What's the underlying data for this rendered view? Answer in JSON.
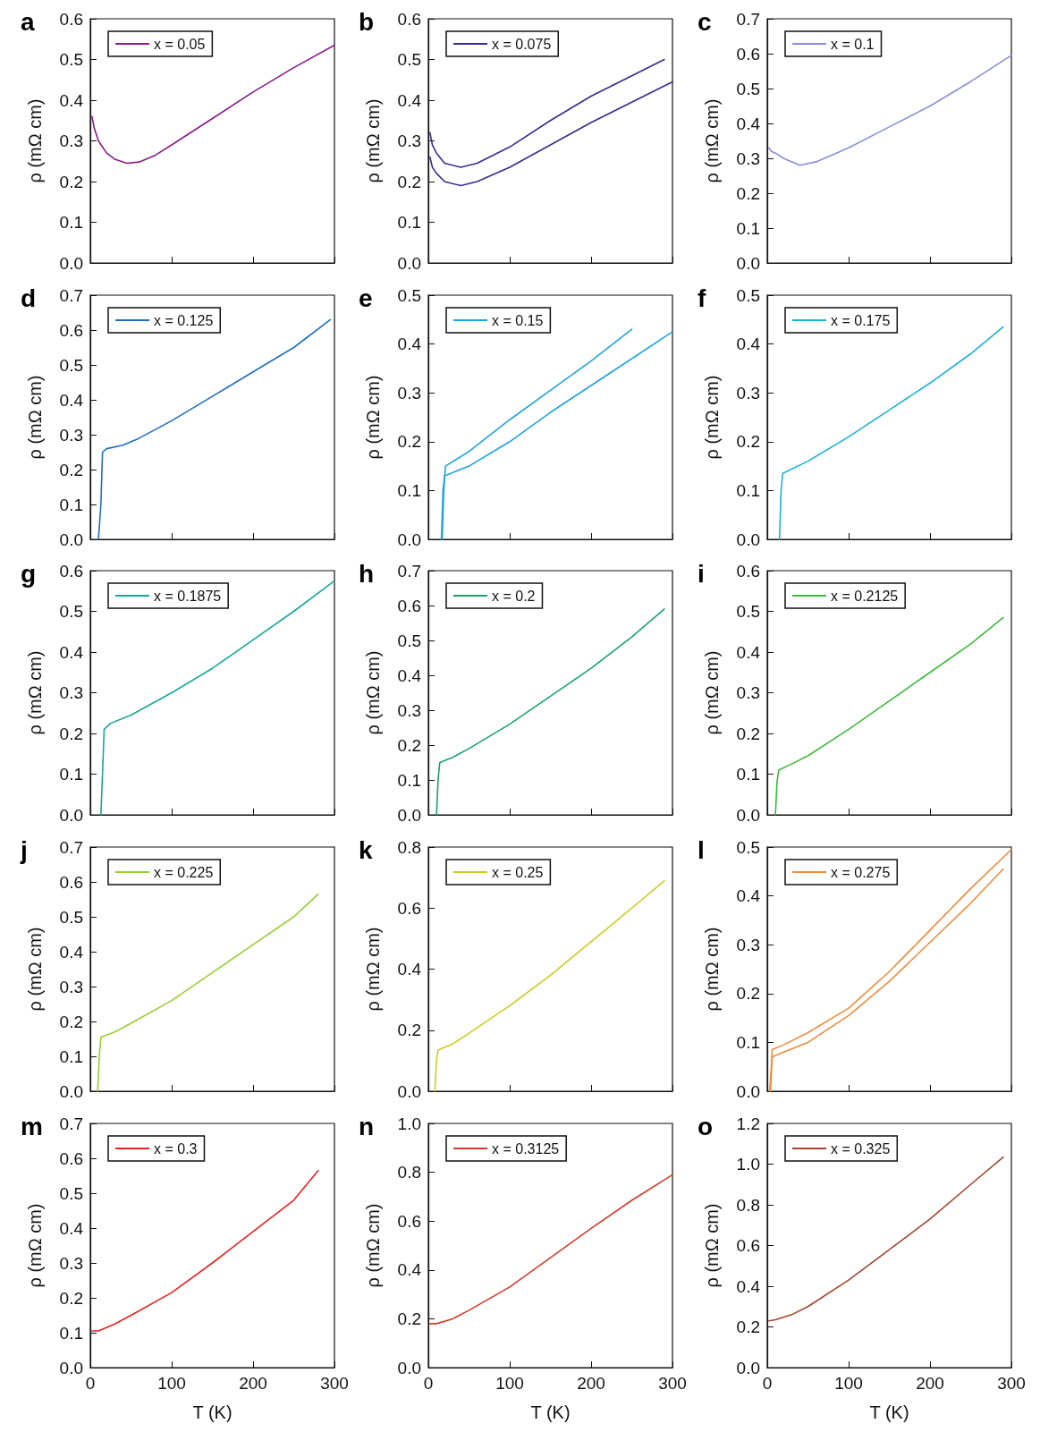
{
  "chart_data": [
    {
      "type": "line",
      "title": "a",
      "ylabel": "ρ (mΩ cm)",
      "xlim": [
        0,
        300
      ],
      "xticks": [
        0,
        100,
        200,
        300
      ],
      "ylim": [
        0,
        0.6
      ],
      "yticks": [
        {
          "value": 0,
          "label": "0.0"
        },
        {
          "value": 0.1,
          "label": "0.1"
        },
        {
          "value": 0.2,
          "label": "0.2"
        },
        {
          "value": 0.3,
          "label": "0.3"
        },
        {
          "value": 0.4,
          "label": "0.4"
        },
        {
          "value": 0.5,
          "label": "0.5"
        },
        {
          "value": 0.6,
          "label": "0.6"
        }
      ],
      "tick_labels": "y",
      "legend": "top left",
      "grid": false,
      "marker": "none",
      "series": [
        {
          "name": "x = 0.05",
          "color": "#8b1a8b",
          "x": [
            2,
            5,
            10,
            20,
            30,
            45,
            60,
            80,
            100,
            150,
            200,
            250,
            300
          ],
          "values": [
            0.36,
            0.33,
            0.3,
            0.27,
            0.255,
            0.245,
            0.248,
            0.265,
            0.29,
            0.355,
            0.42,
            0.48,
            0.535
          ]
        }
      ]
    },
    {
      "type": "line",
      "title": "b",
      "ylabel": "ρ (mΩ cm)",
      "xlim": [
        0,
        300
      ],
      "xticks": [
        0,
        100,
        200,
        300
      ],
      "ylim": [
        0,
        0.6
      ],
      "yticks": [
        {
          "value": 0,
          "label": "0.0"
        },
        {
          "value": 0.1,
          "label": "0.1"
        },
        {
          "value": 0.2,
          "label": "0.2"
        },
        {
          "value": 0.3,
          "label": "0.3"
        },
        {
          "value": 0.4,
          "label": "0.4"
        },
        {
          "value": 0.5,
          "label": "0.5"
        },
        {
          "value": 0.6,
          "label": "0.6"
        }
      ],
      "tick_labels": "y",
      "legend": "top left",
      "grid": false,
      "marker": "none",
      "series": [
        {
          "name": "x = 0.075",
          "color": "#3a2a8c",
          "x": [
            2,
            5,
            10,
            20,
            40,
            60,
            100,
            150,
            200,
            250,
            290
          ],
          "values": [
            0.32,
            0.29,
            0.27,
            0.245,
            0.235,
            0.245,
            0.285,
            0.35,
            0.41,
            0.46,
            0.5
          ]
        },
        {
          "color": "#3a2a8c",
          "x": [
            2,
            5,
            10,
            20,
            40,
            60,
            100,
            150,
            200,
            250,
            300
          ],
          "values": [
            0.26,
            0.235,
            0.22,
            0.2,
            0.19,
            0.2,
            0.235,
            0.29,
            0.345,
            0.395,
            0.445
          ]
        }
      ]
    },
    {
      "type": "line",
      "title": "c",
      "ylabel": "ρ (mΩ cm)",
      "xlim": [
        0,
        300
      ],
      "xticks": [
        0,
        100,
        200,
        300
      ],
      "ylim": [
        0,
        0.7
      ],
      "yticks": [
        {
          "value": 0,
          "label": "0.0"
        },
        {
          "value": 0.1,
          "label": "0.1"
        },
        {
          "value": 0.2,
          "label": "0.2"
        },
        {
          "value": 0.3,
          "label": "0.3"
        },
        {
          "value": 0.4,
          "label": "0.4"
        },
        {
          "value": 0.5,
          "label": "0.5"
        },
        {
          "value": 0.6,
          "label": "0.6"
        },
        {
          "value": 0.7,
          "label": "0.7"
        }
      ],
      "tick_labels": "y",
      "legend": "top left",
      "grid": false,
      "marker": "none",
      "series": [
        {
          "name": "x = 0.1",
          "color": "#8b8fd8",
          "x": [
            2,
            5,
            10,
            20,
            40,
            60,
            100,
            150,
            200,
            250,
            300
          ],
          "values": [
            0.33,
            0.32,
            0.315,
            0.3,
            0.28,
            0.29,
            0.33,
            0.39,
            0.45,
            0.52,
            0.595
          ]
        }
      ]
    },
    {
      "type": "line",
      "title": "d",
      "ylabel": "ρ (mΩ cm)",
      "xlim": [
        0,
        300
      ],
      "xticks": [
        0,
        100,
        200,
        300
      ],
      "ylim": [
        0,
        0.7
      ],
      "yticks": [
        {
          "value": 0,
          "label": "0.0"
        },
        {
          "value": 0.1,
          "label": "0.1"
        },
        {
          "value": 0.2,
          "label": "0.2"
        },
        {
          "value": 0.3,
          "label": "0.3"
        },
        {
          "value": 0.4,
          "label": "0.4"
        },
        {
          "value": 0.5,
          "label": "0.5"
        },
        {
          "value": 0.6,
          "label": "0.6"
        },
        {
          "value": 0.7,
          "label": "0.7"
        }
      ],
      "tick_labels": "y",
      "legend": "top left",
      "grid": false,
      "marker": "none",
      "series": [
        {
          "name": "x = 0.125",
          "color": "#1f6fbf",
          "x": [
            10,
            13,
            15,
            20,
            40,
            60,
            100,
            150,
            200,
            250,
            295
          ],
          "values": [
            0,
            0.1,
            0.25,
            0.26,
            0.27,
            0.29,
            0.34,
            0.41,
            0.48,
            0.55,
            0.63
          ]
        }
      ]
    },
    {
      "type": "line",
      "title": "e",
      "ylabel": "ρ (mΩ cm)",
      "xlim": [
        0,
        300
      ],
      "xticks": [
        0,
        100,
        200,
        300
      ],
      "ylim": [
        0,
        0.5
      ],
      "yticks": [
        {
          "value": 0,
          "label": "0.0"
        },
        {
          "value": 0.1,
          "label": "0.1"
        },
        {
          "value": 0.2,
          "label": "0.2"
        },
        {
          "value": 0.3,
          "label": "0.3"
        },
        {
          "value": 0.4,
          "label": "0.4"
        },
        {
          "value": 0.5,
          "label": "0.5"
        }
      ],
      "tick_labels": "y",
      "legend": "top left",
      "grid": false,
      "marker": "none",
      "series": [
        {
          "name": "x = 0.15",
          "color": "#1ea3e0",
          "x": [
            17,
            19,
            21,
            50,
            100,
            150,
            200,
            250
          ],
          "values": [
            0,
            0.1,
            0.15,
            0.18,
            0.245,
            0.305,
            0.365,
            0.43
          ]
        },
        {
          "color": "#1ea3e0",
          "x": [
            16,
            18,
            20,
            50,
            100,
            150,
            200,
            250,
            300
          ],
          "values": [
            0,
            0.1,
            0.13,
            0.15,
            0.2,
            0.26,
            0.315,
            0.37,
            0.425
          ]
        }
      ]
    },
    {
      "type": "line",
      "title": "f",
      "ylabel": "ρ (mΩ cm)",
      "xlim": [
        0,
        300
      ],
      "xticks": [
        0,
        100,
        200,
        300
      ],
      "ylim": [
        0,
        0.5
      ],
      "yticks": [
        {
          "value": 0,
          "label": "0.0"
        },
        {
          "value": 0.1,
          "label": "0.1"
        },
        {
          "value": 0.2,
          "label": "0.2"
        },
        {
          "value": 0.3,
          "label": "0.3"
        },
        {
          "value": 0.4,
          "label": "0.4"
        },
        {
          "value": 0.5,
          "label": "0.5"
        }
      ],
      "tick_labels": "y",
      "legend": "top left",
      "grid": false,
      "marker": "none",
      "series": [
        {
          "name": "x = 0.175",
          "color": "#1ab0d8",
          "x": [
            15,
            17,
            19,
            50,
            100,
            150,
            200,
            250,
            290
          ],
          "values": [
            0,
            0.1,
            0.135,
            0.16,
            0.21,
            0.265,
            0.32,
            0.38,
            0.435
          ]
        }
      ]
    },
    {
      "type": "line",
      "title": "g",
      "ylabel": "ρ (mΩ cm)",
      "xlim": [
        0,
        300
      ],
      "xticks": [
        0,
        100,
        200,
        300
      ],
      "ylim": [
        0,
        0.6
      ],
      "yticks": [
        {
          "value": 0,
          "label": "0.0"
        },
        {
          "value": 0.1,
          "label": "0.1"
        },
        {
          "value": 0.2,
          "label": "0.2"
        },
        {
          "value": 0.3,
          "label": "0.3"
        },
        {
          "value": 0.4,
          "label": "0.4"
        },
        {
          "value": 0.5,
          "label": "0.5"
        },
        {
          "value": 0.6,
          "label": "0.6"
        }
      ],
      "tick_labels": "y",
      "legend": "top left",
      "grid": false,
      "marker": "none",
      "series": [
        {
          "name": "x = 0.1875",
          "color": "#17a79b",
          "x": [
            13,
            15,
            17,
            25,
            50,
            100,
            150,
            200,
            250,
            300
          ],
          "values": [
            0,
            0.1,
            0.21,
            0.225,
            0.245,
            0.3,
            0.36,
            0.43,
            0.5,
            0.575
          ]
        }
      ]
    },
    {
      "type": "line",
      "title": "h",
      "ylabel": "ρ (mΩ cm)",
      "xlim": [
        0,
        300
      ],
      "xticks": [
        0,
        100,
        200,
        300
      ],
      "ylim": [
        0,
        0.7
      ],
      "yticks": [
        {
          "value": 0,
          "label": "0.0"
        },
        {
          "value": 0.1,
          "label": "0.1"
        },
        {
          "value": 0.2,
          "label": "0.2"
        },
        {
          "value": 0.3,
          "label": "0.3"
        },
        {
          "value": 0.4,
          "label": "0.4"
        },
        {
          "value": 0.5,
          "label": "0.5"
        },
        {
          "value": 0.6,
          "label": "0.6"
        },
        {
          "value": 0.7,
          "label": "0.7"
        }
      ],
      "tick_labels": "y",
      "legend": "top left",
      "grid": false,
      "marker": "none",
      "series": [
        {
          "name": "x = 0.2",
          "color": "#1aa36a",
          "x": [
            10,
            12,
            14,
            30,
            50,
            100,
            150,
            200,
            250,
            290
          ],
          "values": [
            0,
            0.1,
            0.15,
            0.165,
            0.19,
            0.26,
            0.34,
            0.42,
            0.51,
            0.59
          ]
        }
      ]
    },
    {
      "type": "line",
      "title": "i",
      "ylabel": "ρ (mΩ cm)",
      "xlim": [
        0,
        300
      ],
      "xticks": [
        0,
        100,
        200,
        300
      ],
      "ylim": [
        0,
        0.6
      ],
      "yticks": [
        {
          "value": 0,
          "label": "0.0"
        },
        {
          "value": 0.1,
          "label": "0.1"
        },
        {
          "value": 0.2,
          "label": "0.2"
        },
        {
          "value": 0.3,
          "label": "0.3"
        },
        {
          "value": 0.4,
          "label": "0.4"
        },
        {
          "value": 0.5,
          "label": "0.5"
        },
        {
          "value": 0.6,
          "label": "0.6"
        }
      ],
      "tick_labels": "y",
      "legend": "top left",
      "grid": false,
      "marker": "none",
      "series": [
        {
          "name": "x = 0.2125",
          "color": "#3dbb3a",
          "x": [
            10,
            12,
            14,
            30,
            50,
            100,
            150,
            200,
            250,
            290
          ],
          "values": [
            0,
            0.08,
            0.11,
            0.125,
            0.145,
            0.21,
            0.28,
            0.35,
            0.42,
            0.485
          ]
        }
      ]
    },
    {
      "type": "line",
      "title": "j",
      "ylabel": "ρ (mΩ cm)",
      "xlim": [
        0,
        300
      ],
      "xticks": [
        0,
        100,
        200,
        300
      ],
      "ylim": [
        0,
        0.7
      ],
      "yticks": [
        {
          "value": 0,
          "label": "0.0"
        },
        {
          "value": 0.1,
          "label": "0.1"
        },
        {
          "value": 0.2,
          "label": "0.2"
        },
        {
          "value": 0.3,
          "label": "0.3"
        },
        {
          "value": 0.4,
          "label": "0.4"
        },
        {
          "value": 0.5,
          "label": "0.5"
        },
        {
          "value": 0.6,
          "label": "0.6"
        },
        {
          "value": 0.7,
          "label": "0.7"
        }
      ],
      "tick_labels": "y",
      "legend": "top left",
      "grid": false,
      "marker": "none",
      "series": [
        {
          "name": "x = 0.225",
          "color": "#9acd32",
          "x": [
            9,
            11,
            13,
            30,
            50,
            100,
            150,
            200,
            250,
            280
          ],
          "values": [
            0,
            0.1,
            0.155,
            0.17,
            0.195,
            0.26,
            0.34,
            0.42,
            0.5,
            0.565
          ]
        }
      ]
    },
    {
      "type": "line",
      "title": "k",
      "ylabel": "ρ (mΩ cm)",
      "xlim": [
        0,
        300
      ],
      "xticks": [
        0,
        100,
        200,
        300
      ],
      "ylim": [
        0,
        0.8
      ],
      "yticks": [
        {
          "value": 0,
          "label": "0.0"
        },
        {
          "value": 0.2,
          "label": "0.2"
        },
        {
          "value": 0.4,
          "label": "0.4"
        },
        {
          "value": 0.6,
          "label": "0.6"
        },
        {
          "value": 0.8,
          "label": "0.8"
        }
      ],
      "tick_labels": "y",
      "legend": "top left",
      "grid": false,
      "marker": "none",
      "series": [
        {
          "name": "x = 0.25",
          "color": "#cccc20",
          "x": [
            8,
            10,
            12,
            30,
            50,
            100,
            150,
            200,
            250,
            290
          ],
          "values": [
            0,
            0.1,
            0.135,
            0.155,
            0.19,
            0.28,
            0.38,
            0.49,
            0.6,
            0.69
          ]
        }
      ]
    },
    {
      "type": "line",
      "title": "l",
      "ylabel": "ρ (mΩ cm)",
      "xlim": [
        0,
        300
      ],
      "xticks": [
        0,
        100,
        200,
        300
      ],
      "ylim": [
        0,
        0.5
      ],
      "yticks": [
        {
          "value": 0,
          "label": "0.0"
        },
        {
          "value": 0.1,
          "label": "0.1"
        },
        {
          "value": 0.2,
          "label": "0.2"
        },
        {
          "value": 0.3,
          "label": "0.3"
        },
        {
          "value": 0.4,
          "label": "0.4"
        },
        {
          "value": 0.5,
          "label": "0.5"
        }
      ],
      "tick_labels": "y",
      "legend": "top left",
      "grid": false,
      "marker": "none",
      "series": [
        {
          "name": "x = 0.275",
          "color": "#f08a3c",
          "x": [
            3,
            5,
            6,
            20,
            50,
            100,
            150,
            200,
            250,
            300
          ],
          "values": [
            0,
            0.05,
            0.085,
            0.095,
            0.12,
            0.17,
            0.245,
            0.33,
            0.415,
            0.495
          ]
        },
        {
          "color": "#f08a3c",
          "x": [
            4,
            6,
            20,
            50,
            100,
            150,
            200,
            250,
            290
          ],
          "values": [
            0,
            0.07,
            0.08,
            0.1,
            0.155,
            0.225,
            0.305,
            0.385,
            0.455
          ]
        }
      ]
    },
    {
      "type": "line",
      "title": "m",
      "ylabel": "ρ (mΩ cm)",
      "xlabel": "T (K)",
      "xlim": [
        0,
        300
      ],
      "xticks": [
        0,
        100,
        200,
        300
      ],
      "ylim": [
        0,
        0.7
      ],
      "yticks": [
        {
          "value": 0,
          "label": "0.0"
        },
        {
          "value": 0.1,
          "label": "0.1"
        },
        {
          "value": 0.2,
          "label": "0.2"
        },
        {
          "value": 0.3,
          "label": "0.3"
        },
        {
          "value": 0.4,
          "label": "0.4"
        },
        {
          "value": 0.5,
          "label": "0.5"
        },
        {
          "value": 0.6,
          "label": "0.6"
        },
        {
          "value": 0.7,
          "label": "0.7"
        }
      ],
      "legend": "top left",
      "grid": false,
      "marker": "none",
      "series": [
        {
          "name": "x = 0.3",
          "color": "#e8221e",
          "x": [
            2,
            10,
            30,
            50,
            100,
            150,
            200,
            250,
            280
          ],
          "values": [
            0.105,
            0.105,
            0.125,
            0.15,
            0.215,
            0.3,
            0.39,
            0.48,
            0.565
          ]
        }
      ]
    },
    {
      "type": "line",
      "title": "n",
      "ylabel": "ρ (mΩ cm)",
      "xlabel": "T (K)",
      "xlim": [
        0,
        300
      ],
      "xticks": [
        0,
        100,
        200,
        300
      ],
      "ylim": [
        0,
        1.0
      ],
      "yticks": [
        {
          "value": 0,
          "label": "0.0"
        },
        {
          "value": 0.2,
          "label": "0.2"
        },
        {
          "value": 0.4,
          "label": "0.4"
        },
        {
          "value": 0.6,
          "label": "0.6"
        },
        {
          "value": 0.8,
          "label": "0.8"
        },
        {
          "value": 1,
          "label": "1.0"
        }
      ],
      "legend": "top left",
      "grid": false,
      "marker": "none",
      "series": [
        {
          "name": "x = 0.3125",
          "color": "#d03c2a",
          "x": [
            2,
            10,
            30,
            50,
            100,
            150,
            200,
            250,
            300
          ],
          "values": [
            0.18,
            0.18,
            0.2,
            0.235,
            0.33,
            0.45,
            0.57,
            0.685,
            0.79
          ]
        }
      ]
    },
    {
      "type": "line",
      "title": "o",
      "ylabel": "ρ (mΩ cm)",
      "xlabel": "T (K)",
      "xlim": [
        0,
        300
      ],
      "xticks": [
        0,
        100,
        200,
        300
      ],
      "ylim": [
        0,
        1.2
      ],
      "yticks": [
        {
          "value": 0,
          "label": "0.0"
        },
        {
          "value": 0.2,
          "label": "0.2"
        },
        {
          "value": 0.4,
          "label": "0.4"
        },
        {
          "value": 0.6,
          "label": "0.6"
        },
        {
          "value": 0.8,
          "label": "0.8"
        },
        {
          "value": 1,
          "label": "1.0"
        },
        {
          "value": 1.2,
          "label": "1.2"
        }
      ],
      "legend": "top left",
      "grid": false,
      "marker": "none",
      "series": [
        {
          "name": "x = 0.325",
          "color": "#a5432e",
          "x": [
            2,
            10,
            30,
            50,
            100,
            150,
            200,
            250,
            290
          ],
          "values": [
            0.23,
            0.235,
            0.26,
            0.3,
            0.43,
            0.58,
            0.73,
            0.9,
            1.035
          ]
        }
      ]
    }
  ]
}
